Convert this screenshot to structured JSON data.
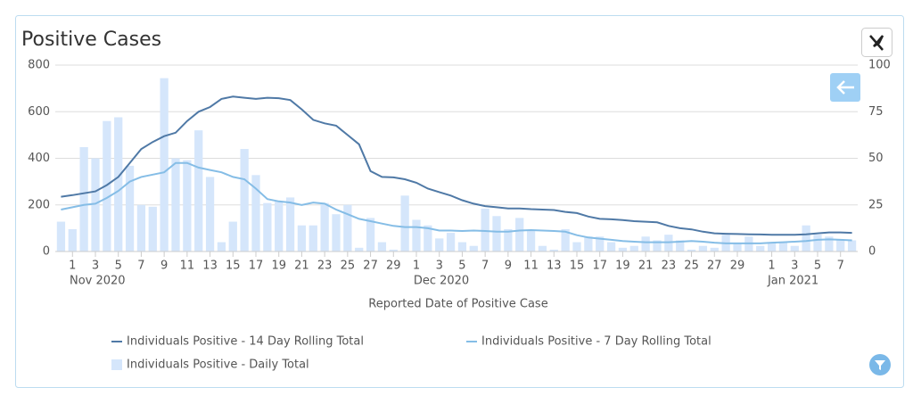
{
  "chart_data": {
    "type": "combo",
    "title": "Positive Cases",
    "x_label": "Reported Date of Positive Case",
    "categories": [
      null,
      "1",
      null,
      "3",
      null,
      "5",
      null,
      "7",
      null,
      "9",
      null,
      "11",
      null,
      "13",
      null,
      "15",
      null,
      "17",
      null,
      "19",
      null,
      "21",
      null,
      "23",
      null,
      "25",
      null,
      "27",
      null,
      "29",
      null,
      "1",
      null,
      "3",
      null,
      "5",
      null,
      "7",
      null,
      "9",
      null,
      "11",
      null,
      "13",
      null,
      "15",
      null,
      "17",
      null,
      "19",
      null,
      "21",
      null,
      "23",
      null,
      "25",
      null,
      "27",
      null,
      "29",
      null,
      null,
      "1",
      null,
      "3",
      null,
      "5",
      null,
      "7",
      null
    ],
    "month_labels": [
      "Nov 2020",
      "Dec 2020",
      "Jan 2021"
    ],
    "series": [
      {
        "name": "Individuals Positive - Daily Total",
        "kind": "bar",
        "axis": "y2",
        "color": "#d5e6fb",
        "values": [
          16,
          12,
          56,
          50,
          70,
          72,
          46,
          25,
          24,
          93,
          50,
          49,
          65,
          40,
          5,
          16,
          55,
          41,
          26,
          27,
          29,
          14,
          14,
          26,
          20,
          25,
          2,
          18,
          5,
          1,
          30,
          17,
          14,
          7,
          10,
          5,
          3,
          23,
          19,
          12,
          18,
          11,
          3,
          1,
          12,
          5,
          8,
          8,
          5,
          2,
          3,
          8,
          6,
          9,
          6,
          1,
          3,
          2,
          9,
          4,
          8,
          3,
          5,
          5,
          3,
          14,
          9,
          8,
          6,
          6
        ]
      },
      {
        "name": "Individuals Positive - 14 Day Rolling Total",
        "kind": "line",
        "color": "#4f79a6",
        "values": [
          235,
          242,
          250,
          258,
          285,
          320,
          380,
          440,
          470,
          495,
          510,
          560,
          600,
          620,
          655,
          665,
          660,
          655,
          660,
          658,
          650,
          610,
          565,
          550,
          540,
          500,
          460,
          345,
          320,
          318,
          310,
          295,
          270,
          255,
          240,
          220,
          205,
          195,
          190,
          185,
          185,
          182,
          180,
          178,
          170,
          165,
          150,
          140,
          138,
          135,
          130,
          128,
          125,
          110,
          100,
          95,
          85,
          78,
          76,
          75,
          74,
          73,
          72,
          72,
          72,
          74,
          78,
          82,
          82,
          80
        ]
      },
      {
        "name": "Individuals Positive - 7 Day Rolling Total",
        "kind": "line",
        "color": "#85bde6",
        "values": [
          180,
          190,
          200,
          205,
          230,
          260,
          300,
          320,
          330,
          340,
          380,
          380,
          360,
          350,
          340,
          320,
          310,
          270,
          225,
          215,
          210,
          200,
          210,
          205,
          180,
          160,
          140,
          130,
          120,
          110,
          105,
          105,
          100,
          90,
          90,
          88,
          90,
          88,
          85,
          85,
          90,
          92,
          90,
          88,
          85,
          70,
          60,
          55,
          50,
          45,
          42,
          40,
          40,
          40,
          42,
          45,
          42,
          38,
          35,
          35,
          35,
          35,
          38,
          40,
          42,
          45,
          50,
          52,
          50,
          48
        ]
      }
    ],
    "ylim": [
      0,
      800
    ],
    "yticks": [
      0,
      200,
      400,
      600,
      800
    ],
    "y2lim": [
      0,
      100
    ],
    "y2ticks": [
      0,
      25,
      50,
      75,
      100
    ],
    "grid": true
  }
}
